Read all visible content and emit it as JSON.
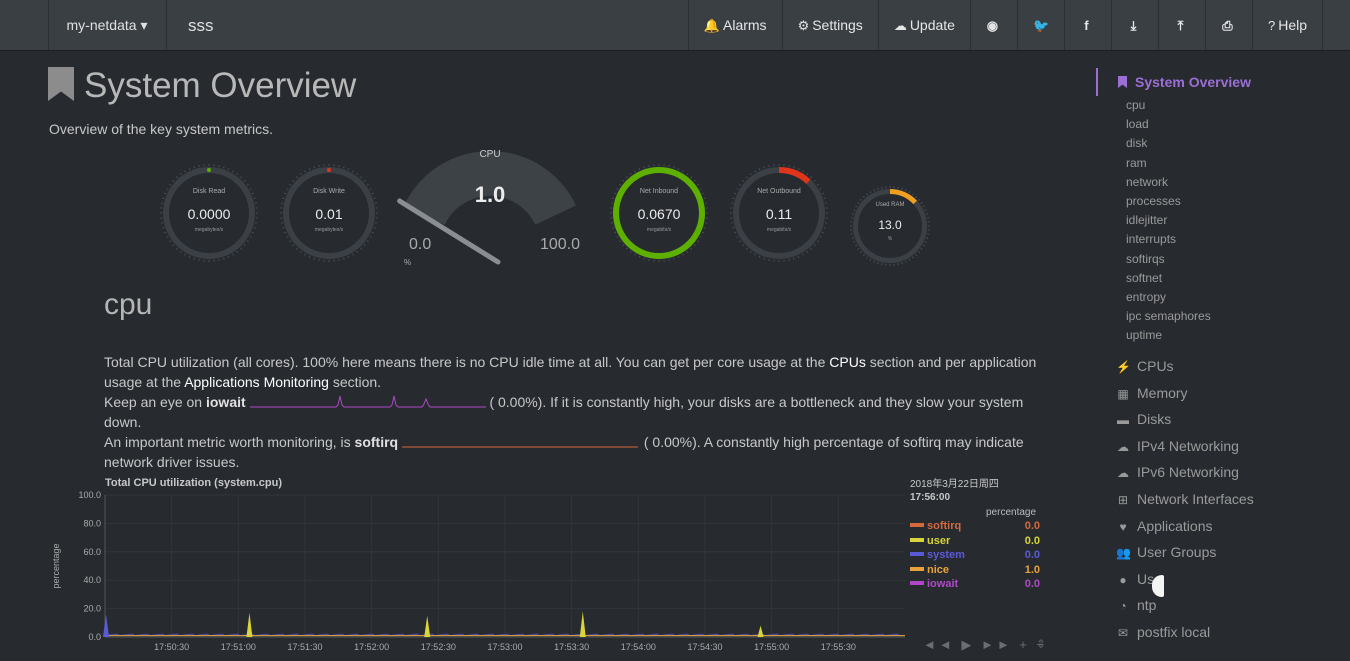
{
  "navbar": {
    "brand": "my-netdata ▾",
    "hostname": "sss",
    "buttons": [
      {
        "icon": "bell-icon",
        "glyph": "🔔",
        "label": "Alarms"
      },
      {
        "icon": "gear-icon",
        "glyph": "⚙",
        "label": "Settings"
      },
      {
        "icon": "cloud-download-icon",
        "glyph": "☁",
        "label": "Update"
      },
      {
        "icon": "github-icon",
        "glyph": "◉",
        "label": ""
      },
      {
        "icon": "twitter-icon",
        "glyph": "🐦",
        "label": ""
      },
      {
        "icon": "facebook-icon",
        "glyph": "f",
        "label": ""
      },
      {
        "icon": "download-icon",
        "glyph": "⤓",
        "label": ""
      },
      {
        "icon": "upload-icon",
        "glyph": "⤒",
        "label": ""
      },
      {
        "icon": "print-icon",
        "glyph": "⎙",
        "label": ""
      },
      {
        "icon": "question-circle-icon",
        "glyph": "?",
        "label": "Help"
      }
    ]
  },
  "page": {
    "title": "System Overview",
    "subtitle": "Overview of the key system metrics."
  },
  "gauges": {
    "disk_read": {
      "title": "Disk Read",
      "value": "0.0000",
      "unit": "megabytes/s",
      "fraction": 0.0
    },
    "disk_write": {
      "title": "Disk Write",
      "value": "0.01",
      "unit": "megabytes/s",
      "fraction": 0.01
    },
    "cpu": {
      "title": "CPU",
      "value": "1.0",
      "min": "0.0",
      "max": "100.0",
      "unit": "%",
      "percent": 1.0
    },
    "net_inbound": {
      "title": "Net Inbound",
      "value": "0.0670",
      "unit": "megabits/s",
      "fraction": 1.0,
      "color": "#5eb000"
    },
    "net_outbound": {
      "title": "Net Outbound",
      "value": "0.11",
      "unit": "megabits/s",
      "fraction": 0.12,
      "color": "#e0341b"
    },
    "used_ram": {
      "title": "Used RAM",
      "value": "13.0",
      "unit": "%",
      "fraction": 0.13,
      "color": "#f0a020"
    }
  },
  "cpu_section": {
    "title": "cpu",
    "p1_a": "Total CPU utilization (all cores). 100% here means there is no CPU idle time at all. You can get per core usage at the ",
    "p1_link1": "CPUs",
    "p1_b": " section and per application usage at the ",
    "p1_link2": "Applications Monitoring",
    "p1_c": " section.",
    "p2_a": "Keep an eye on ",
    "p2_b": "iowait",
    "p2_c": "(      0.00%). If it is constantly high, your disks are a bottleneck and they slow your system down.",
    "p3_a": "An important metric worth monitoring, is ",
    "p3_b": "softirq",
    "p3_c": "(      0.00%). A constantly high percentage of softirq may indicate network driver issues."
  },
  "chart": {
    "title": "Total CPU utilization (system.cpu)",
    "date": "2018年3月22日周四",
    "time": "17:56:00",
    "legend_header": "percentage",
    "legend": [
      {
        "name": "softirq",
        "value": "0.0",
        "color": "#d4693c"
      },
      {
        "name": "user",
        "value": "0.0",
        "color": "#d8d43a"
      },
      {
        "name": "system",
        "value": "0.0",
        "color": "#5a5ad6"
      },
      {
        "name": "nice",
        "value": "1.0",
        "color": "#e9a23b"
      },
      {
        "name": "iowait",
        "value": "0.0",
        "color": "#b047c8"
      }
    ],
    "controls": "◄◄ ▶ ►► + −"
  },
  "chart_data": {
    "type": "area",
    "title": "Total CPU utilization (system.cpu)",
    "ylabel": "percentage",
    "ylim": [
      0,
      100
    ],
    "yticks": [
      "100.0",
      "80.0",
      "60.0",
      "40.0",
      "20.0",
      "0.0"
    ],
    "xticks": [
      "17:50:30",
      "17:51:00",
      "17:51:30",
      "17:52:00",
      "17:52:30",
      "17:53:00",
      "17:53:30",
      "17:54:00",
      "17:54:30",
      "17:55:00",
      "17:55:30"
    ],
    "x_start": "17:50:00",
    "x_end": "17:56:00",
    "spikes": [
      {
        "time": "17:50:00",
        "series": "system",
        "value": 16
      },
      {
        "time": "17:51:05",
        "series": "user",
        "value": 17
      },
      {
        "time": "17:52:25",
        "series": "user",
        "value": 15
      },
      {
        "time": "17:53:35",
        "series": "user",
        "value": 18
      },
      {
        "time": "17:54:55",
        "series": "user",
        "value": 8
      }
    ],
    "baseline": 1.0
  },
  "sidebar": {
    "active": "System Overview",
    "subitems": [
      "cpu",
      "load",
      "disk",
      "ram",
      "network",
      "processes",
      "idlejitter",
      "interrupts",
      "softirqs",
      "softnet",
      "entropy",
      "ipc semaphores",
      "uptime"
    ],
    "sections": [
      {
        "icon": "bolt-icon",
        "glyph": "⚡",
        "label": "CPUs"
      },
      {
        "icon": "memory-icon",
        "glyph": "▦",
        "label": "Memory"
      },
      {
        "icon": "hdd-icon",
        "glyph": "▬",
        "label": "Disks"
      },
      {
        "icon": "cloud-icon",
        "glyph": "☁",
        "label": "IPv4 Networking"
      },
      {
        "icon": "cloud-icon",
        "glyph": "☁",
        "label": "IPv6 Networking"
      },
      {
        "icon": "sitemap-icon",
        "glyph": "⊞",
        "label": "Network Interfaces"
      },
      {
        "icon": "heartbeat-icon",
        "glyph": "♥",
        "label": "Applications"
      },
      {
        "icon": "users-icon",
        "glyph": "👥",
        "label": "User Groups"
      },
      {
        "icon": "user-icon",
        "glyph": "●",
        "label": "Us"
      },
      {
        "icon": "clock-icon",
        "glyph": "◔",
        "label": "ntp"
      },
      {
        "icon": "envelope-icon",
        "glyph": "✉",
        "label": "postfix local"
      }
    ]
  }
}
